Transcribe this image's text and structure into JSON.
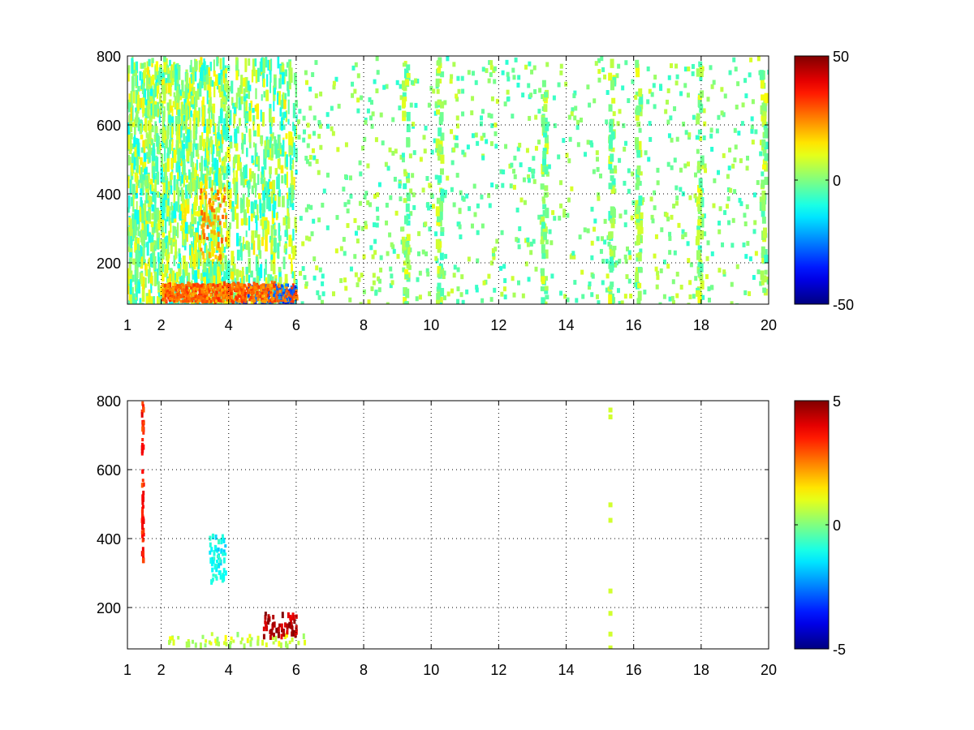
{
  "chart_data": [
    {
      "type": "heatmap",
      "title": "",
      "xlabel": "",
      "ylabel": "",
      "xlim": [
        1,
        20
      ],
      "ylim": [
        80,
        800
      ],
      "x_ticks": [
        1,
        2,
        4,
        6,
        8,
        10,
        12,
        14,
        16,
        18,
        20
      ],
      "y_ticks": [
        200,
        400,
        600,
        800
      ],
      "grid": true,
      "colormap": "jet",
      "colorbar": {
        "range": [
          -50,
          50
        ],
        "ticks": [
          50,
          0,
          -50
        ],
        "placement": "right"
      },
      "regions": [
        {
          "x": [
            2.0,
            6.0
          ],
          "y": [
            90,
            150
          ],
          "level": 28,
          "note": "strong band"
        },
        {
          "x": [
            4.2,
            5.9
          ],
          "y": [
            80,
            140
          ],
          "level": -30,
          "note": "negative streak"
        },
        {
          "x": [
            3.1,
            3.9
          ],
          "y": [
            220,
            420
          ],
          "level": 22
        },
        {
          "x": [
            1.0,
            6.0
          ],
          "y": [
            80,
            800
          ],
          "level": 8,
          "note": "dense scatter"
        },
        {
          "x": [
            6.0,
            20.0
          ],
          "y": [
            80,
            800
          ],
          "level": 0,
          "note": "sparse scatter"
        }
      ],
      "stripes_x": [
        9.2,
        10.2,
        13.3,
        15.3,
        16.1,
        17.9,
        19.8
      ]
    },
    {
      "type": "heatmap",
      "title": "",
      "xlabel": "",
      "ylabel": "",
      "xlim": [
        1,
        20
      ],
      "ylim": [
        80,
        800
      ],
      "x_ticks": [
        1,
        2,
        4,
        6,
        8,
        10,
        12,
        14,
        16,
        18,
        20
      ],
      "y_ticks": [
        200,
        400,
        600,
        800
      ],
      "grid": true,
      "colormap": "jet",
      "colorbar": {
        "range": [
          -5,
          5
        ],
        "ticks": [
          5,
          0,
          -5
        ],
        "placement": "right"
      },
      "regions": [
        {
          "x": [
            2.2,
            6.4
          ],
          "y": [
            95,
            130
          ],
          "level": 0.7
        },
        {
          "x": [
            5.0,
            6.0
          ],
          "y": [
            120,
            190
          ],
          "level": 4.5
        },
        {
          "x": [
            3.4,
            3.9
          ],
          "y": [
            280,
            420
          ],
          "level": -1.2
        },
        {
          "x": [
            1.4,
            1.45
          ],
          "y": [
            340,
            800
          ],
          "level": 3.5
        }
      ],
      "stripes_x": [
        15.3
      ]
    }
  ]
}
